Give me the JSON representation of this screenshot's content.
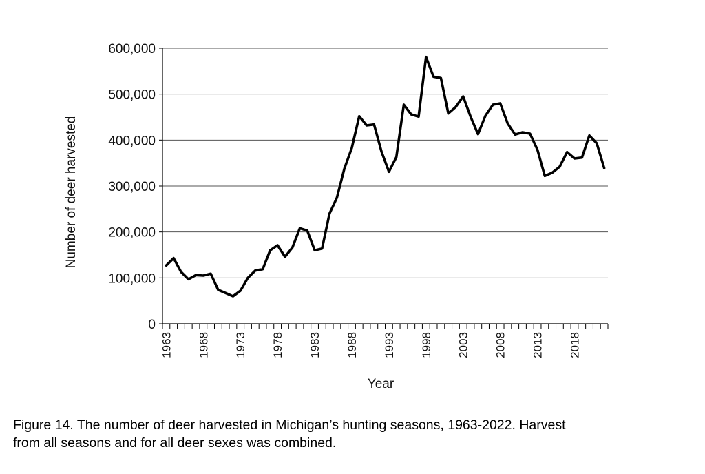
{
  "chart_data": {
    "type": "line",
    "title": "",
    "xlabel": "Year",
    "ylabel": "Number of deer harvested",
    "ylim": [
      0,
      600000
    ],
    "xlim": [
      1963,
      2022
    ],
    "yticks": [
      0,
      100000,
      200000,
      300000,
      400000,
      500000,
      600000
    ],
    "ytick_labels": [
      "0",
      "100,000",
      "200,000",
      "300,000",
      "400,000",
      "500,000",
      "600,000"
    ],
    "xtick_labels": [
      "1963",
      "1968",
      "1973",
      "1978",
      "1983",
      "1988",
      "1993",
      "1998",
      "2003",
      "2008",
      "2013",
      "2018"
    ],
    "grid": true,
    "series": [
      {
        "name": "Deer harvested",
        "color": "#000000",
        "x": [
          1963,
          1964,
          1965,
          1966,
          1967,
          1968,
          1969,
          1970,
          1971,
          1972,
          1973,
          1974,
          1975,
          1976,
          1977,
          1978,
          1979,
          1980,
          1981,
          1982,
          1983,
          1984,
          1985,
          1986,
          1987,
          1988,
          1989,
          1990,
          1991,
          1992,
          1993,
          1994,
          1995,
          1996,
          1997,
          1998,
          1999,
          2000,
          2001,
          2002,
          2003,
          2004,
          2005,
          2006,
          2007,
          2008,
          2009,
          2010,
          2011,
          2012,
          2013,
          2014,
          2015,
          2016,
          2017,
          2018,
          2019,
          2020,
          2021,
          2022
        ],
        "values": [
          127000,
          143000,
          113000,
          97000,
          106000,
          105000,
          109000,
          74000,
          67000,
          60000,
          72000,
          100000,
          116000,
          119000,
          160000,
          171000,
          146000,
          166000,
          208000,
          203000,
          160000,
          164000,
          240000,
          275000,
          338000,
          383000,
          452000,
          432000,
          434000,
          375000,
          331000,
          363000,
          477000,
          456000,
          451000,
          581000,
          538000,
          535000,
          458000,
          472000,
          495000,
          451000,
          413000,
          453000,
          477000,
          480000,
          436000,
          412000,
          417000,
          414000,
          379000,
          322000,
          329000,
          342000,
          374000,
          360000,
          362000,
          410000,
          393000,
          339000
        ]
      }
    ]
  },
  "caption": {
    "line1": "Figure 14. The number of deer harvested in Michigan’s hunting seasons, 1963-2022. Harvest",
    "line2": "from all seasons and for all deer sexes was combined."
  }
}
